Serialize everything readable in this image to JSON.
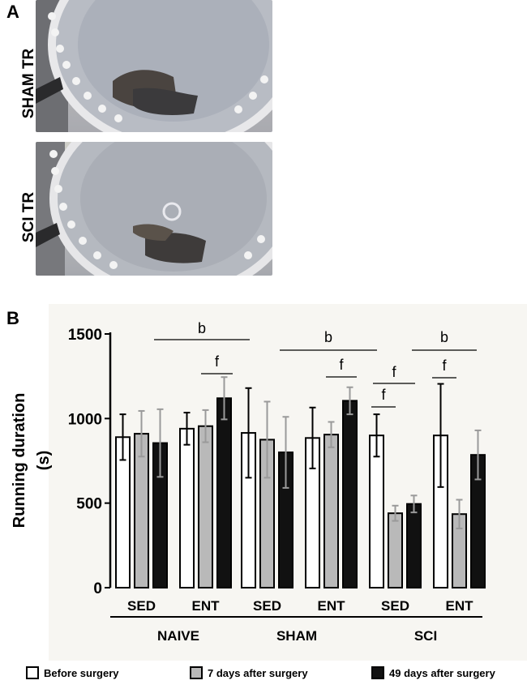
{
  "panel_a": {
    "letter": "A",
    "images": [
      {
        "label": "SHAM TR"
      },
      {
        "label": "SCI TR"
      }
    ]
  },
  "panel_b": {
    "letter": "B"
  },
  "colors": {
    "before": "#ffffff",
    "day7": "#b9b9b9",
    "day49": "#111111",
    "error_gray": "#9a9a9a",
    "error_black": "#000000"
  },
  "chart_data": {
    "type": "bar",
    "ylabel": "Running duration\n(s)",
    "ylabel_lines": [
      "Running duration",
      "(s)"
    ],
    "ylim": [
      0,
      1500
    ],
    "yticks": [
      0,
      500,
      1000,
      1500
    ],
    "ytick_labels": [
      "0",
      "500",
      "1000",
      "1500"
    ],
    "categories": [
      "SED",
      "ENT",
      "SED",
      "ENT",
      "SED",
      "ENT"
    ],
    "groups": [
      "NAIVE",
      "SHAM",
      "SCI"
    ],
    "series": [
      {
        "name": "Before surgery",
        "values": [
          890,
          940,
          915,
          885,
          900,
          900
        ],
        "errors": [
          135,
          95,
          265,
          180,
          125,
          305
        ]
      },
      {
        "name": "7 days after surgery",
        "values": [
          910,
          955,
          875,
          905,
          440,
          435
        ],
        "errors": [
          135,
          95,
          225,
          75,
          45,
          85
        ]
      },
      {
        "name": "49 days after surgery",
        "values": [
          855,
          1120,
          800,
          1105,
          495,
          785
        ],
        "errors": [
          200,
          125,
          210,
          80,
          50,
          145
        ]
      }
    ],
    "annotations": [
      {
        "text": "b",
        "from": "NAIVE SED",
        "to": "NAIVE ENT"
      },
      {
        "text": "f",
        "from": "NAIVE ENT day7",
        "to": "NAIVE ENT day49"
      },
      {
        "text": "b",
        "from": "SHAM SED",
        "to": "SHAM ENT"
      },
      {
        "text": "f",
        "from": "SHAM ENT day7",
        "to": "SHAM ENT day49"
      },
      {
        "text": "f",
        "from": "SCI SED before",
        "to": "SCI SED day49"
      },
      {
        "text": "f",
        "from": "SCI SED before",
        "to": "SCI SED day7"
      },
      {
        "text": "b",
        "from": "SCI SED",
        "to": "SCI ENT"
      },
      {
        "text": "f",
        "from": "SCI ENT before",
        "to": "SCI ENT day7"
      }
    ],
    "legend": [
      "Before surgery",
      "7 days after surgery",
      "49 days after surgery"
    ],
    "legend_position": "bottom"
  }
}
